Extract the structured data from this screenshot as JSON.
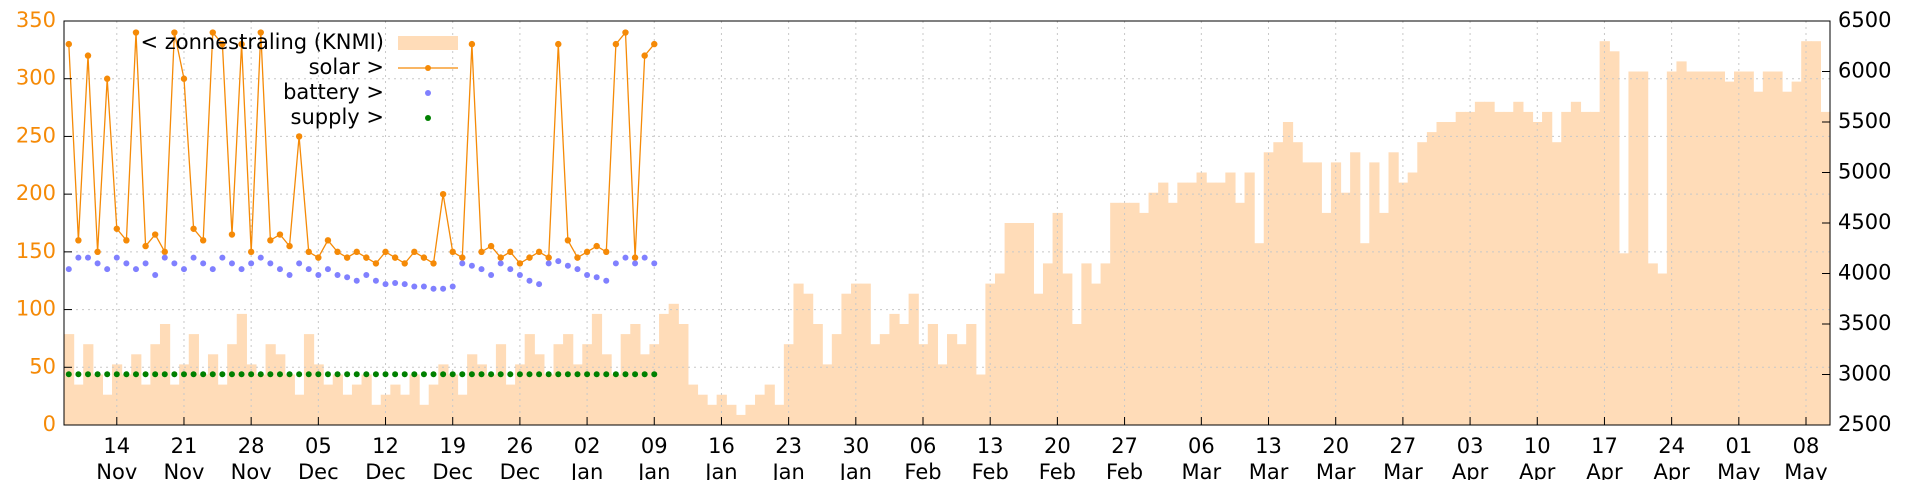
{
  "chart_data": {
    "type": "line",
    "x": [
      "09 Nov",
      "10 Nov",
      "11 Nov",
      "12 Nov",
      "13 Nov",
      "14 Nov",
      "15 Nov",
      "16 Nov",
      "17 Nov",
      "18 Nov",
      "19 Nov",
      "20 Nov",
      "21 Nov",
      "22 Nov",
      "23 Nov",
      "24 Nov",
      "25 Nov",
      "26 Nov",
      "27 Nov",
      "28 Nov",
      "29 Nov",
      "30 Nov",
      "01 Dec",
      "02 Dec",
      "03 Dec",
      "04 Dec",
      "05 Dec",
      "06 Dec",
      "07 Dec",
      "08 Dec",
      "09 Dec",
      "10 Dec",
      "11 Dec",
      "12 Dec",
      "13 Dec",
      "14 Dec",
      "15 Dec",
      "16 Dec",
      "17 Dec",
      "18 Dec",
      "19 Dec",
      "20 Dec",
      "21 Dec",
      "22 Dec",
      "23 Dec",
      "24 Dec",
      "25 Dec",
      "26 Dec",
      "27 Dec",
      "28 Dec",
      "29 Dec",
      "30 Dec",
      "31 Dec",
      "01 Jan",
      "02 Jan",
      "03 Jan",
      "04 Jan",
      "05 Jan",
      "06 Jan",
      "07 Jan",
      "08 Jan",
      "09 Jan",
      "10 Jan",
      "11 Jan",
      "12 Jan",
      "13 Jan",
      "14 Jan",
      "15 Jan",
      "16 Jan",
      "17 Jan",
      "18 Jan",
      "19 Jan",
      "20 Jan",
      "21 Jan",
      "22 Jan",
      "23 Jan",
      "24 Jan",
      "25 Jan",
      "26 Jan",
      "27 Jan",
      "28 Jan",
      "29 Jan",
      "30 Jan",
      "31 Jan",
      "01 Feb",
      "02 Feb",
      "03 Feb",
      "04 Feb",
      "05 Feb",
      "06 Feb",
      "07 Feb",
      "08 Feb",
      "09 Feb",
      "10 Feb",
      "11 Feb",
      "12 Feb",
      "13 Feb",
      "14 Feb",
      "15 Feb",
      "16 Feb",
      "17 Feb",
      "18 Feb",
      "19 Feb",
      "20 Feb",
      "21 Feb",
      "22 Feb",
      "23 Feb",
      "24 Feb",
      "25 Feb",
      "26 Feb",
      "27 Feb",
      "28 Feb",
      "29 Feb",
      "01 Mar",
      "02 Mar",
      "03 Mar",
      "04 Mar",
      "05 Mar",
      "06 Mar",
      "07 Mar",
      "08 Mar",
      "09 Mar",
      "10 Mar",
      "11 Mar",
      "12 Mar",
      "13 Mar",
      "14 Mar",
      "15 Mar",
      "16 Mar",
      "17 Mar",
      "18 Mar",
      "19 Mar",
      "20 Mar",
      "21 Mar",
      "22 Mar",
      "23 Mar",
      "24 Mar",
      "25 Mar",
      "26 Mar",
      "27 Mar",
      "28 Mar",
      "29 Mar",
      "30 Mar",
      "31 Mar",
      "01 Apr",
      "02 Apr",
      "03 Apr",
      "04 Apr",
      "05 Apr",
      "06 Apr",
      "07 Apr",
      "08 Apr",
      "09 Apr",
      "10 Apr",
      "11 Apr",
      "12 Apr",
      "13 Apr",
      "14 Apr",
      "15 Apr",
      "16 Apr",
      "17 Apr",
      "18 Apr",
      "19 Apr",
      "20 Apr",
      "21 Apr",
      "22 Apr",
      "23 Apr",
      "24 Apr",
      "25 Apr",
      "26 Apr",
      "27 Apr",
      "28 Apr",
      "29 Apr",
      "30 Apr",
      "01 May",
      "02 May",
      "03 May",
      "04 May",
      "05 May",
      "06 May",
      "07 May",
      "08 May",
      "09 May",
      "10 May"
    ],
    "xticks": [
      {
        "day": "14",
        "month": "Nov"
      },
      {
        "day": "21",
        "month": "Nov"
      },
      {
        "day": "28",
        "month": "Nov"
      },
      {
        "day": "05",
        "month": "Dec"
      },
      {
        "day": "12",
        "month": "Dec"
      },
      {
        "day": "19",
        "month": "Dec"
      },
      {
        "day": "26",
        "month": "Dec"
      },
      {
        "day": "02",
        "month": "Jan"
      },
      {
        "day": "09",
        "month": "Jan"
      },
      {
        "day": "16",
        "month": "Jan"
      },
      {
        "day": "23",
        "month": "Jan"
      },
      {
        "day": "30",
        "month": "Jan"
      },
      {
        "day": "06",
        "month": "Feb"
      },
      {
        "day": "13",
        "month": "Feb"
      },
      {
        "day": "20",
        "month": "Feb"
      },
      {
        "day": "27",
        "month": "Feb"
      },
      {
        "day": "06",
        "month": "Mar"
      },
      {
        "day": "13",
        "month": "Mar"
      },
      {
        "day": "20",
        "month": "Mar"
      },
      {
        "day": "27",
        "month": "Mar"
      },
      {
        "day": "03",
        "month": "Apr"
      },
      {
        "day": "10",
        "month": "Apr"
      },
      {
        "day": "17",
        "month": "Apr"
      },
      {
        "day": "24",
        "month": "Apr"
      },
      {
        "day": "01",
        "month": "May"
      },
      {
        "day": "08",
        "month": "May"
      }
    ],
    "ylim": [
      0,
      350
    ],
    "yticks": [
      0,
      50,
      100,
      150,
      200,
      250,
      300,
      350
    ],
    "ycolor": "#f58a07",
    "y2lim": [
      2500,
      6500
    ],
    "y2ticks": [
      2500,
      3000,
      3500,
      4000,
      4500,
      5000,
      5500,
      6000,
      6500
    ],
    "grid": true,
    "legend": "top-left",
    "series": [
      {
        "name": "< zonnestraling (KNMI)",
        "type": "area",
        "axis": "y2",
        "color": "#ffdcb8",
        "values": [
          3400,
          2900,
          3300,
          3000,
          2800,
          3100,
          3000,
          3200,
          2900,
          3300,
          3500,
          2900,
          3100,
          3400,
          3000,
          3200,
          2900,
          3300,
          3600,
          3100,
          3000,
          3300,
          3200,
          3000,
          2800,
          3400,
          3100,
          2900,
          3000,
          2800,
          2900,
          3000,
          2700,
          2800,
          2900,
          2800,
          3000,
          2700,
          2900,
          3100,
          3000,
          2800,
          3200,
          3100,
          3000,
          3300,
          2900,
          3100,
          3400,
          3200,
          3000,
          3300,
          3400,
          3100,
          3300,
          3600,
          3200,
          3000,
          3400,
          3500,
          3200,
          3300,
          3600,
          3700,
          3500,
          2900,
          2800,
          2700,
          2800,
          2700,
          2600,
          2700,
          2800,
          2900,
          2700,
          3300,
          3900,
          3800,
          3500,
          3100,
          3400,
          3800,
          3900,
          3900,
          3300,
          3400,
          3600,
          3500,
          3800,
          3300,
          3500,
          3100,
          3400,
          3300,
          3500,
          3000,
          3900,
          4000,
          4500,
          4500,
          4500,
          3800,
          4100,
          4600,
          4000,
          3500,
          4100,
          3900,
          4100,
          4700,
          4700,
          4700,
          4600,
          4800,
          4900,
          4700,
          4900,
          4900,
          5000,
          4900,
          4900,
          5000,
          4700,
          5000,
          4300,
          5200,
          5300,
          5500,
          5300,
          5100,
          5100,
          4600,
          5100,
          4800,
          5200,
          4300,
          5100,
          4600,
          5200,
          4900,
          5000,
          5300,
          5400,
          5500,
          5500,
          5600,
          5600,
          5700,
          5700,
          5600,
          5600,
          5700,
          5600,
          5500,
          5600,
          5300,
          5600,
          5700,
          5600,
          5600,
          6300,
          6200,
          4200,
          6000,
          6000,
          4100,
          4000,
          6000,
          6100,
          6000,
          6000,
          6000,
          6000,
          5900,
          6000,
          6000,
          5800,
          6000,
          6000,
          5800,
          5900,
          6300,
          6300,
          5600
        ]
      },
      {
        "name": "solar >",
        "type": "line",
        "color": "#f58a07",
        "values": [
          330,
          160,
          320,
          150,
          300,
          170,
          160,
          340,
          155,
          165,
          150,
          340,
          300,
          170,
          160,
          340,
          330,
          165,
          330,
          150,
          340,
          160,
          165,
          155,
          250,
          150,
          145,
          160,
          150,
          145,
          150,
          145,
          140,
          150,
          145,
          140,
          150,
          145,
          140,
          200,
          150,
          145,
          330,
          150,
          155,
          145,
          150,
          140,
          145,
          150,
          145,
          330,
          160,
          145,
          150,
          155,
          150,
          330,
          340,
          145,
          320,
          330,
          null,
          null,
          null,
          null,
          null,
          null,
          null,
          null,
          null,
          null,
          null,
          null,
          null,
          null,
          null,
          null,
          null,
          null,
          null,
          null,
          null,
          null,
          null,
          null,
          null,
          null,
          null,
          null,
          null,
          null,
          null,
          null,
          null,
          null,
          null,
          null,
          null,
          null,
          null,
          null,
          null,
          null,
          null,
          null,
          null,
          null,
          null,
          null,
          null,
          null,
          null,
          null,
          null,
          null,
          null,
          null,
          null,
          null,
          null,
          null,
          null,
          null,
          null,
          null,
          null,
          null,
          null,
          null,
          null,
          null,
          null,
          null,
          null,
          null,
          null,
          null,
          null,
          null,
          null,
          null,
          null,
          null,
          null,
          null,
          null,
          null,
          null,
          null,
          null,
          null,
          null,
          null,
          null,
          null,
          null,
          null,
          null,
          null,
          null,
          null,
          null,
          null,
          null,
          null,
          null,
          null,
          null,
          null,
          null,
          null,
          null,
          null,
          null,
          null,
          null,
          null,
          null,
          null,
          null,
          null,
          null,
          null
        ]
      },
      {
        "name": "battery >",
        "type": "scatter",
        "color": "#8080ff",
        "values": [
          135,
          145,
          145,
          140,
          135,
          145,
          140,
          135,
          140,
          130,
          145,
          140,
          135,
          145,
          140,
          135,
          145,
          140,
          135,
          140,
          145,
          140,
          135,
          130,
          140,
          135,
          130,
          135,
          130,
          128,
          125,
          130,
          125,
          122,
          123,
          122,
          120,
          120,
          118,
          118,
          120,
          140,
          138,
          135,
          130,
          140,
          135,
          130,
          125,
          122,
          140,
          142,
          138,
          135,
          130,
          128,
          125,
          140,
          145,
          140,
          145,
          140,
          null,
          null,
          null,
          null,
          null,
          null,
          null,
          null,
          null,
          null,
          null,
          null,
          null,
          null,
          null,
          null,
          null,
          null,
          null,
          null,
          null,
          null,
          null,
          null,
          null,
          null,
          null,
          null,
          null,
          null,
          null,
          null,
          null,
          null,
          null,
          null,
          null,
          null,
          null,
          null,
          null,
          null,
          null,
          null,
          null,
          null,
          null,
          null,
          null,
          null,
          null,
          null,
          null,
          null,
          null,
          null,
          null,
          null,
          null,
          null,
          null,
          null,
          null,
          null,
          null,
          null,
          null,
          null,
          null,
          null,
          null,
          null,
          null,
          null,
          null,
          null,
          null,
          null,
          null,
          null,
          null,
          null,
          null,
          null,
          null,
          null,
          null,
          null,
          null,
          null,
          null,
          null,
          null,
          null,
          null,
          null,
          null,
          null,
          null,
          null,
          null,
          null,
          null,
          null,
          null,
          null,
          null,
          null,
          null,
          null,
          null,
          null,
          null,
          null,
          null,
          null,
          null,
          null,
          null,
          null,
          null,
          null
        ]
      },
      {
        "name": "supply >",
        "type": "scatter",
        "color": "#008000",
        "values": [
          44,
          44,
          44,
          44,
          44,
          44,
          44,
          44,
          44,
          44,
          44,
          44,
          44,
          44,
          44,
          44,
          44,
          44,
          44,
          44,
          44,
          44,
          44,
          44,
          44,
          44,
          44,
          44,
          44,
          44,
          44,
          44,
          44,
          44,
          44,
          44,
          44,
          44,
          44,
          44,
          44,
          44,
          44,
          44,
          44,
          44,
          44,
          44,
          44,
          44,
          44,
          44,
          44,
          44,
          44,
          44,
          44,
          44,
          44,
          44,
          44,
          44,
          null,
          null,
          null,
          null,
          null,
          null,
          null,
          null,
          null,
          null,
          null,
          null,
          null,
          null,
          null,
          null,
          null,
          null,
          null,
          null,
          null,
          null,
          null,
          null,
          null,
          null,
          null,
          null,
          null,
          null,
          null,
          null,
          null,
          null,
          null,
          null,
          null,
          null,
          null,
          null,
          null,
          null,
          null,
          null,
          null,
          null,
          null,
          null,
          null,
          null,
          null,
          null,
          null,
          null,
          null,
          null,
          null,
          null,
          null,
          null,
          null,
          null,
          null,
          null,
          null,
          null,
          null,
          null,
          null,
          null,
          null,
          null,
          null,
          null,
          null,
          null,
          null,
          null,
          null,
          null,
          null,
          null,
          null,
          null,
          null,
          null,
          null,
          null,
          null,
          null,
          null,
          null,
          null,
          null,
          null,
          null,
          null,
          null,
          null,
          null,
          null,
          null,
          null,
          null,
          null,
          null,
          null,
          null,
          null,
          null,
          null,
          null,
          null,
          null,
          null,
          null,
          null,
          null,
          null,
          null,
          null,
          null
        ]
      }
    ]
  }
}
